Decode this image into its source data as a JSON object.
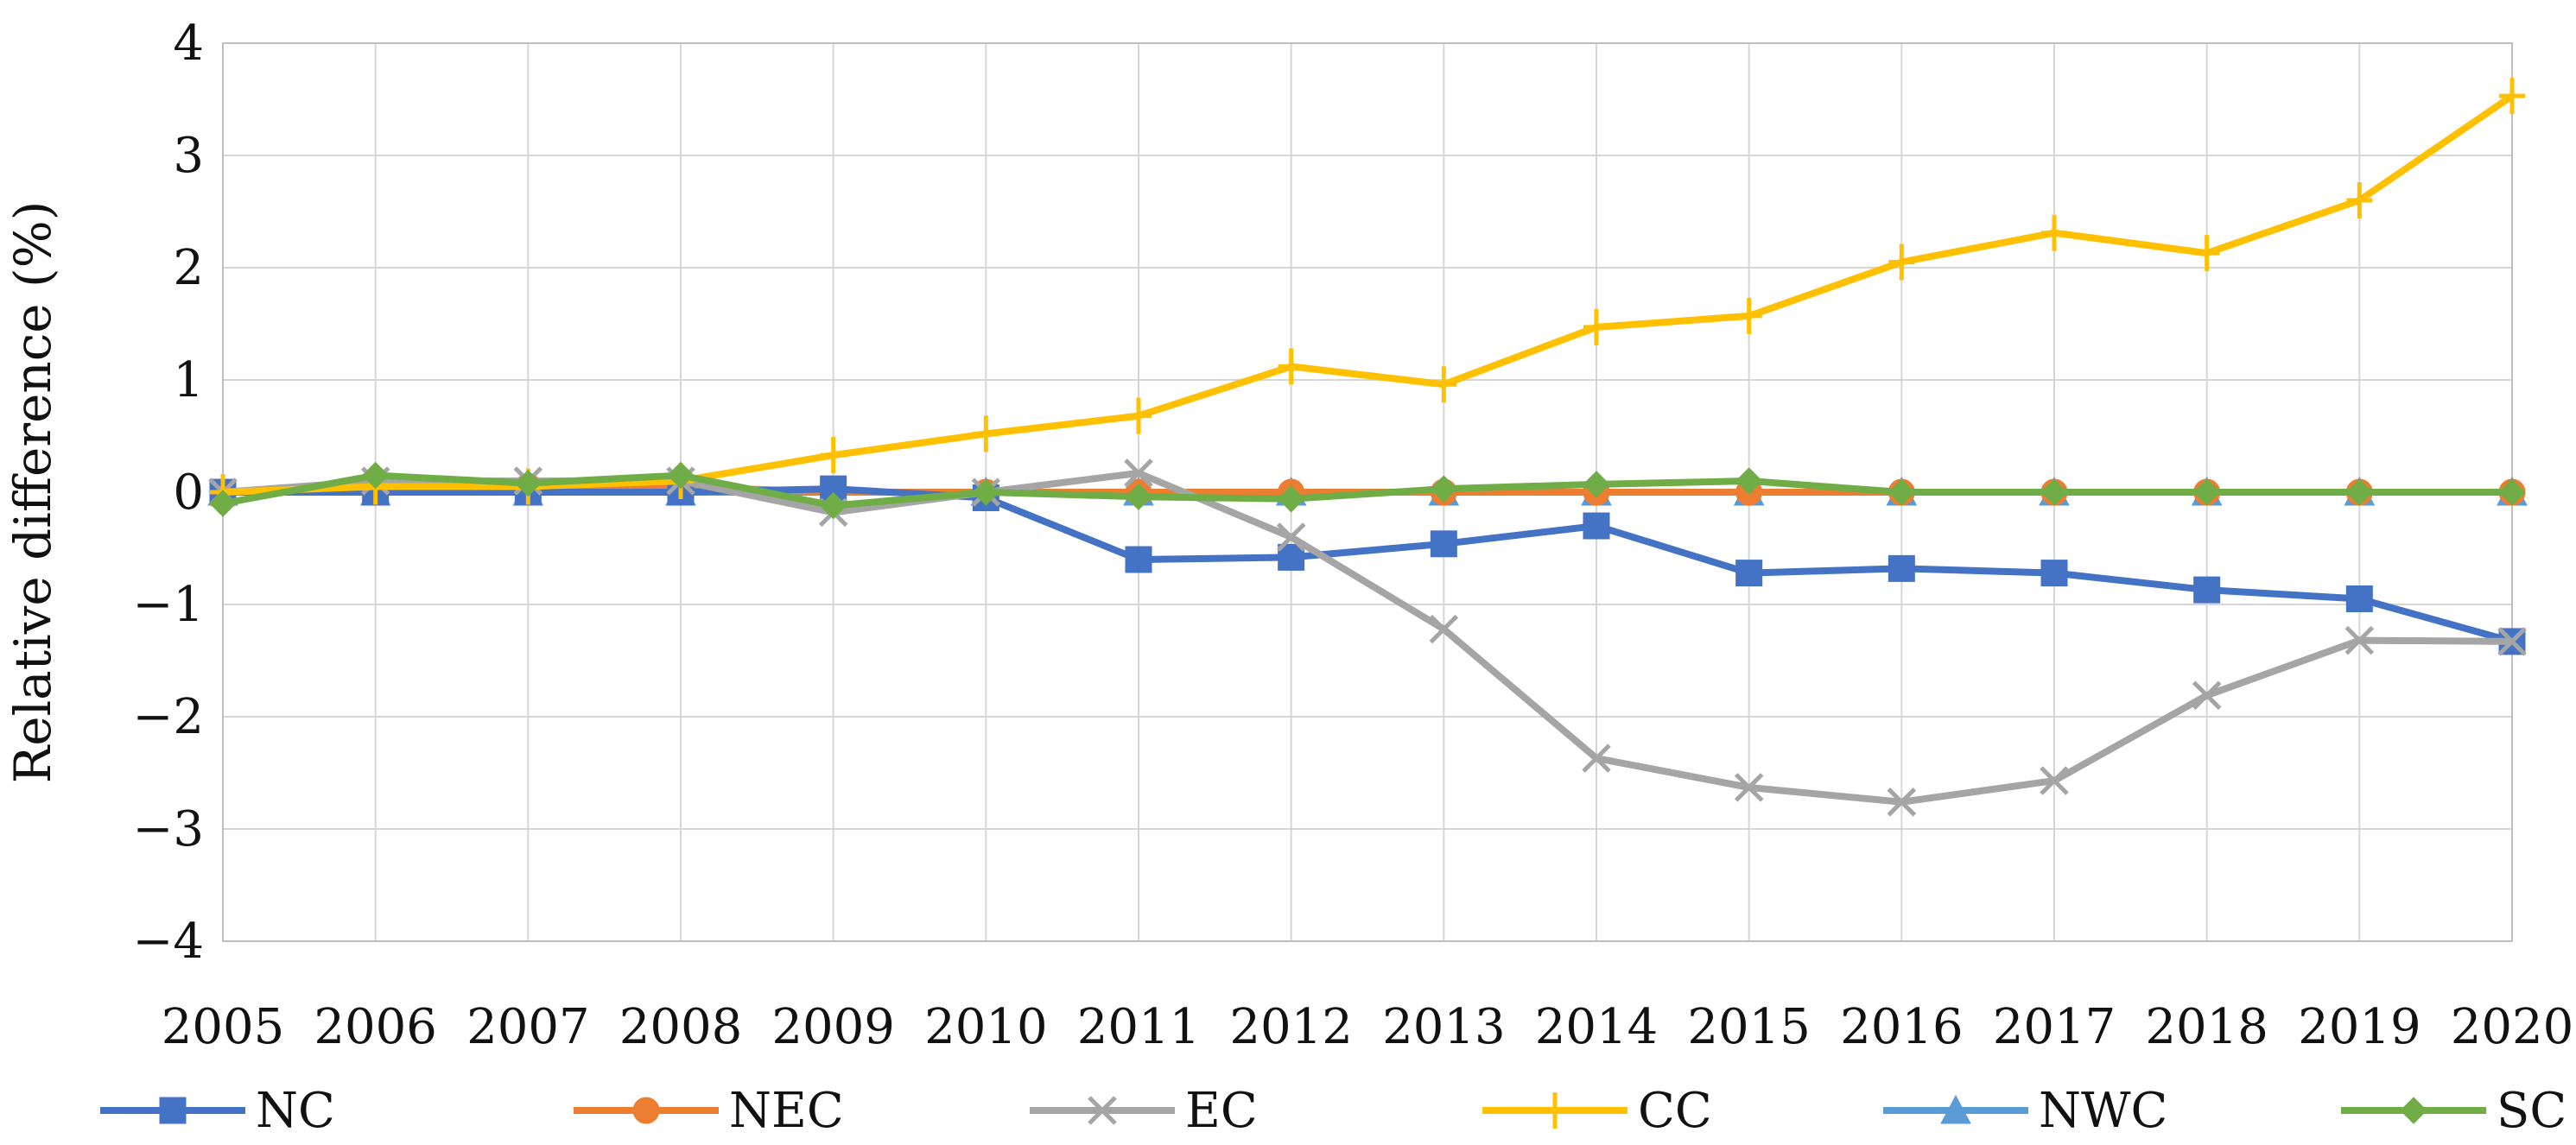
{
  "chart_data": {
    "type": "line",
    "title": "",
    "xlabel": "",
    "ylabel": "Relative difference (%)",
    "ylim": [
      -4,
      4
    ],
    "yticks": [
      4,
      3,
      2,
      1,
      0,
      -1,
      -2,
      -3,
      -4
    ],
    "ytick_labels": [
      "4",
      "3",
      "2",
      "1",
      "0",
      "−1",
      "−2",
      "−3",
      "−4"
    ],
    "grid": true,
    "legend_position": "bottom",
    "categories": [
      "2005",
      "2006",
      "2007",
      "2008",
      "2009",
      "2010",
      "2011",
      "2012",
      "2013",
      "2014",
      "2015",
      "2016",
      "2017",
      "2018",
      "2019",
      "2020"
    ],
    "series": [
      {
        "name": "NWC",
        "color": "#5B9BD5",
        "marker": "triangle",
        "values": [
          0,
          0,
          0,
          0,
          0,
          0,
          0,
          0,
          0,
          0,
          0,
          0,
          0,
          0,
          0,
          0
        ]
      },
      {
        "name": "NEC",
        "color": "#ED7D31",
        "marker": "circle",
        "values": [
          0,
          0.05,
          0.05,
          0.05,
          0,
          0,
          0,
          0,
          0,
          0,
          0,
          0,
          0,
          0,
          0,
          0
        ]
      },
      {
        "name": "NC",
        "color": "#4472C4",
        "marker": "square",
        "values": [
          0,
          0,
          0,
          0,
          0.03,
          -0.05,
          -0.6,
          -0.58,
          -0.46,
          -0.3,
          -0.72,
          -0.68,
          -0.72,
          -0.87,
          -0.95,
          -1.33
        ]
      },
      {
        "name": "EC",
        "color": "#A5A5A5",
        "marker": "x",
        "values": [
          0,
          0.1,
          0.1,
          0.1,
          -0.18,
          0,
          0.17,
          -0.4,
          -1.22,
          -2.37,
          -2.63,
          -2.76,
          -2.57,
          -1.81,
          -1.32,
          -1.33
        ]
      },
      {
        "name": "CC",
        "color": "#FFC000",
        "marker": "plus",
        "values": [
          0,
          0.05,
          0.05,
          0.1,
          0.33,
          0.52,
          0.68,
          1.12,
          0.96,
          1.47,
          1.57,
          2.05,
          2.31,
          2.13,
          2.6,
          3.53
        ]
      },
      {
        "name": "SC",
        "color": "#70AD47",
        "marker": "diamond",
        "values": [
          -0.1,
          0.15,
          0.08,
          0.15,
          -0.12,
          0,
          -0.04,
          -0.06,
          0.03,
          0.07,
          0.1,
          0,
          0,
          0,
          0,
          0
        ]
      }
    ],
    "legend_order": [
      "NC",
      "NEC",
      "EC",
      "CC",
      "NWC",
      "SC"
    ]
  }
}
